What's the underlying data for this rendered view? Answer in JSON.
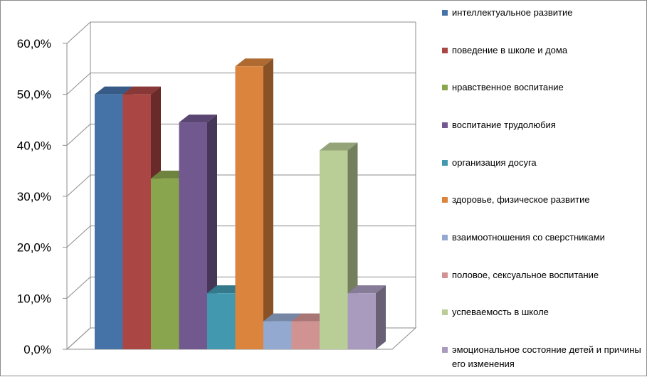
{
  "chart_data": {
    "type": "bar",
    "title": "",
    "xlabel": "",
    "ylabel": "",
    "ylim": [
      0,
      0.6
    ],
    "yticks": [
      "0,0%",
      "10,0%",
      "20,0%",
      "30,0%",
      "40,0%",
      "50,0%",
      "60,0%"
    ],
    "grid": true,
    "legend_position": "right",
    "series": [
      {
        "name": "интеллектуальное развитие",
        "value": 0.5,
        "color": "#4572a7"
      },
      {
        "name": "поведение в школе и дома",
        "value": 0.5,
        "color": "#aa4643"
      },
      {
        "name": "нравственное воспитание",
        "value": 0.335,
        "color": "#89a54e"
      },
      {
        "name": "воспитание трудолюбия",
        "value": 0.445,
        "color": "#71588f"
      },
      {
        "name": "организация досуга",
        "value": 0.11,
        "color": "#4198af"
      },
      {
        "name": "здоровье, физическое развитие",
        "value": 0.555,
        "color": "#db843d"
      },
      {
        "name": "взаимоотношения со сверстниками",
        "value": 0.055,
        "color": "#93a9cf"
      },
      {
        "name": "половое, сексуальное воспитание",
        "value": 0.055,
        "color": "#d19392"
      },
      {
        "name": "успеваемость в школе",
        "value": 0.39,
        "color": "#b9cd96"
      },
      {
        "name": "эмоциональное состояние детей и причины его изменения",
        "value": 0.11,
        "color": "#a99bbd"
      }
    ]
  }
}
